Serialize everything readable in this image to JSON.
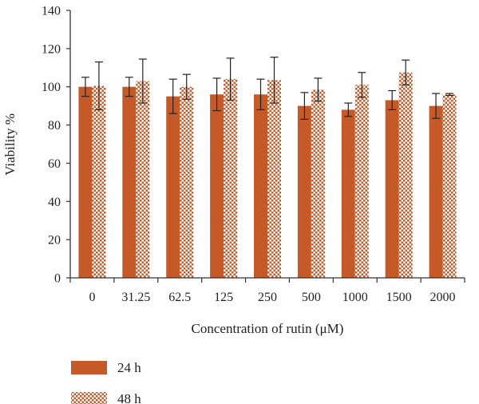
{
  "chart_data": {
    "type": "bar",
    "xlabel": "Concentration of rutin (μM)",
    "ylabel": "Viability %",
    "ylim": [
      0,
      140
    ],
    "yticks": [
      0,
      20,
      40,
      60,
      80,
      100,
      120,
      140
    ],
    "categories": [
      "0",
      "31.25",
      "62.5",
      "125",
      "250",
      "500",
      "1000",
      "1500",
      "2000"
    ],
    "series": [
      {
        "name": "24 h",
        "color": "#C55A28",
        "pattern": "solid",
        "values": [
          100,
          100,
          95,
          96,
          96,
          90,
          88,
          93,
          90
        ],
        "errors": [
          5,
          5,
          9,
          8.5,
          8,
          7,
          3.5,
          5,
          6.5
        ]
      },
      {
        "name": "48 h",
        "color": "#C55A28",
        "pattern": "checkered",
        "values": [
          100.5,
          103,
          100,
          104,
          103.5,
          98.5,
          101,
          107.5,
          96
        ],
        "errors": [
          12.5,
          11.5,
          6.5,
          11,
          12,
          6,
          6.5,
          6.5,
          0.5
        ]
      }
    ],
    "legend_position": "bottom-left",
    "grid": false
  }
}
